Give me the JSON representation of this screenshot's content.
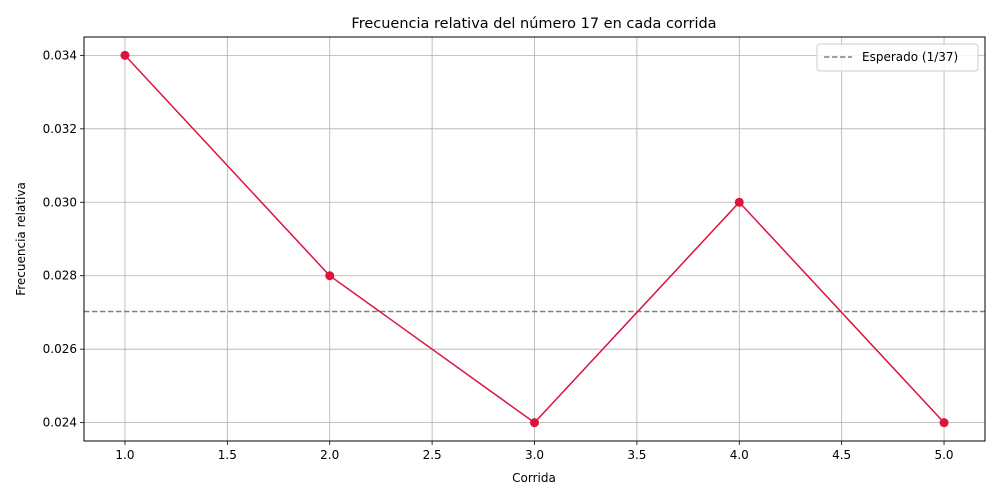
{
  "chart_data": {
    "type": "line",
    "title": "Frecuencia relativa del número 17 en cada corrida",
    "xlabel": "Corrida",
    "ylabel": "Frecuencia relativa",
    "x": [
      1.0,
      2.0,
      3.0,
      4.0,
      5.0
    ],
    "series": [
      {
        "values": [
          0.034,
          0.028,
          0.024,
          0.03,
          0.024
        ],
        "color": "#dc143c",
        "marker": "circle"
      }
    ],
    "reference_lines": [
      {
        "name": "Esperado (1/37)",
        "y": 0.027027,
        "style": "dashed",
        "color": "#808080"
      }
    ],
    "xlim": [
      0.8,
      5.2
    ],
    "ylim": [
      0.0235,
      0.0345
    ],
    "xticks": [
      "1.0",
      "1.5",
      "2.0",
      "2.5",
      "3.0",
      "3.5",
      "4.0",
      "4.5",
      "5.0"
    ],
    "yticks": [
      "0.024",
      "0.026",
      "0.028",
      "0.030",
      "0.032",
      "0.034"
    ],
    "grid": true,
    "legend_position": "top-right"
  }
}
